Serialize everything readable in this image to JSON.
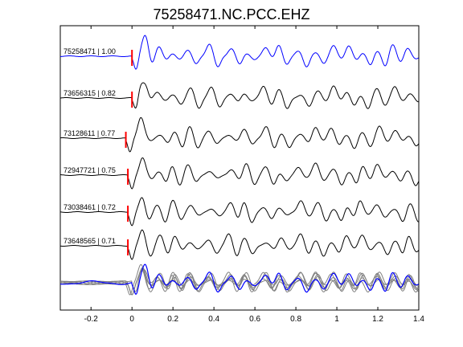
{
  "chart_data": {
    "type": "line",
    "title": "75258471.NC.PCC.EHZ",
    "xlabel": "",
    "ylabel": "",
    "xlim": [
      -0.35,
      1.4
    ],
    "x_ticks": [
      "-0.2",
      "0",
      "0.2",
      "0.4",
      "0.6",
      "0.8",
      "1",
      "1.2",
      "1.4"
    ],
    "x_tick_values": [
      -0.2,
      0,
      0.2,
      0.4,
      0.6,
      0.8,
      1.0,
      1.2,
      1.4
    ],
    "grid": false,
    "colors": {
      "reference": "#0000ff",
      "trace": "#000000",
      "stack": "#808080",
      "pick": "#ff0000"
    },
    "series": [
      {
        "name": "75258471 | 1.00",
        "pick_time": 0.0,
        "pre_event_start": -0.35
      },
      {
        "name": "73656315 | 0.82",
        "pick_time": 0.0,
        "pre_event_start": -0.35
      },
      {
        "name": "73128611 | 0.77",
        "pick_time": -0.03,
        "pre_event_start": -0.35
      },
      {
        "name": "72947721 | 0.75",
        "pick_time": -0.02,
        "pre_event_start": -0.35
      },
      {
        "name": "73038461 | 0.72",
        "pick_time": -0.02,
        "pre_event_start": -0.35
      },
      {
        "name": "73648565 | 0.71",
        "pick_time": -0.02,
        "pre_event_start": -0.35
      }
    ],
    "waveform_peak_times": [
      0.05,
      0.13,
      0.2,
      0.28,
      0.38,
      0.48,
      0.55,
      0.65,
      0.72,
      0.82,
      0.9,
      0.98,
      1.05,
      1.12,
      1.2,
      1.28,
      1.35
    ]
  }
}
